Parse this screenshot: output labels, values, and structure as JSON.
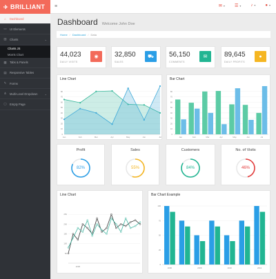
{
  "brand": {
    "name": "BRILLIANT"
  },
  "sidebar": {
    "items": [
      {
        "label": "Dashboard",
        "icon": "home-icon"
      },
      {
        "label": "UI Elements",
        "icon": "monitor-icon"
      },
      {
        "label": "Charts",
        "icon": "chart-icon"
      },
      {
        "label": "Tabs & Panels",
        "icon": "tabs-icon"
      },
      {
        "label": "Responsive Tables",
        "icon": "table-icon"
      },
      {
        "label": "Forms",
        "icon": "edit-icon"
      },
      {
        "label": "Multi-Level Dropdown",
        "icon": "sitemap-icon"
      },
      {
        "label": "Empty Page",
        "icon": "file-icon"
      }
    ],
    "charts_sub": [
      "Charts JS",
      "Morris Chart"
    ]
  },
  "topbar": {
    "icons": [
      "envelope-icon",
      "tasks-icon",
      "bell-icon",
      "user-icon"
    ]
  },
  "header": {
    "title": "Dashboard",
    "welcome": "Welcome John Doe"
  },
  "breadcrumb": {
    "home": "Home",
    "dashboard": "Dashboard",
    "current": "Data"
  },
  "stats": [
    {
      "value": "44,023",
      "label": "DAILY VISITS",
      "color": "#f36a5a",
      "icon": "eye-icon"
    },
    {
      "value": "32,850",
      "label": "SALES",
      "color": "#2a9ee6",
      "icon": "cart-icon"
    },
    {
      "value": "56,150",
      "label": "COMMENTS",
      "color": "#21b592",
      "icon": "comments-icon"
    },
    {
      "value": "89,645",
      "label": "DAILY PROFITS",
      "color": "#f5b622",
      "icon": "user-icon"
    }
  ],
  "progress": [
    {
      "title": "Profit",
      "percent": 82,
      "label": "82%",
      "color": "#2a9ee6"
    },
    {
      "title": "Sales",
      "percent": 55,
      "label": "55%",
      "color": "#f5b622"
    },
    {
      "title": "Customers",
      "percent": 84,
      "label": "84%",
      "color": "#21b592"
    },
    {
      "title": "No. of Visits",
      "percent": 46,
      "label": "46%",
      "color": "#e33b3b"
    }
  ],
  "chart_data": [
    {
      "type": "area",
      "title": "Line Chart",
      "categories": [
        "Jan",
        "Feb",
        "Mar",
        "Apr",
        "May",
        "Jun",
        "Jul"
      ],
      "ylim": [
        0,
        90
      ],
      "yticks": [
        0,
        10,
        20,
        30,
        40,
        50,
        60,
        70,
        80
      ],
      "series": [
        {
          "values": [
            65,
            59,
            80,
            81,
            56,
            55,
            40
          ],
          "color": "#36b89a"
        },
        {
          "values": [
            28,
            48,
            40,
            19,
            86,
            27,
            90
          ],
          "color": "#3fa9d8"
        }
      ]
    },
    {
      "type": "bar",
      "title": "Bar Chart",
      "categories": [
        "Jan",
        "Feb",
        "Mar",
        "Apr",
        "May",
        "Jun",
        "Jul"
      ],
      "ylim": [
        0,
        90
      ],
      "yticks": [
        0,
        10,
        20,
        30,
        40,
        50,
        60,
        70,
        80
      ],
      "series": [
        {
          "values": [
            65,
            59,
            80,
            81,
            56,
            55,
            40
          ],
          "color": "#5ccba5"
        },
        {
          "values": [
            28,
            48,
            40,
            19,
            86,
            27,
            90
          ],
          "color": "#6cbde8"
        }
      ]
    },
    {
      "type": "line",
      "title": "Line Chart",
      "x": [
        "2006",
        "2007",
        "2008",
        "2009",
        "2010",
        "2011",
        "2012",
        "2013",
        "2014",
        "2015",
        "2016",
        "2017",
        "2018",
        "2019",
        "2020",
        "2021"
      ],
      "ylim": [
        0,
        300
      ],
      "yticks": [
        50,
        100,
        150,
        200,
        250
      ],
      "xticks": [
        "2008"
      ],
      "series": [
        {
          "values": [
            50,
            150,
            120,
            200,
            180,
            150,
            230,
            160,
            180,
            250,
            180,
            200,
            190,
            210,
            220,
            200
          ],
          "color": "#333333"
        },
        {
          "values": [
            80,
            130,
            180,
            160,
            220,
            140,
            200,
            170,
            150,
            230,
            200,
            160,
            230,
            180,
            190,
            210
          ],
          "color": "#3db39e"
        }
      ]
    },
    {
      "type": "bar",
      "title": "Bar Chart Example",
      "categories": [
        "2006",
        "2007",
        "2008",
        "2009",
        "2010",
        "2011",
        "2012"
      ],
      "ylim": [
        0,
        100
      ],
      "yticks": [
        0,
        25,
        50,
        75,
        100
      ],
      "xticks": [
        "2006",
        "2008",
        "2010",
        "2012"
      ],
      "series": [
        {
          "values": [
            100,
            75,
            50,
            75,
            50,
            75,
            100
          ],
          "color": "#2a9ee6"
        },
        {
          "values": [
            90,
            65,
            40,
            65,
            40,
            65,
            90
          ],
          "color": "#21b592"
        }
      ]
    }
  ]
}
